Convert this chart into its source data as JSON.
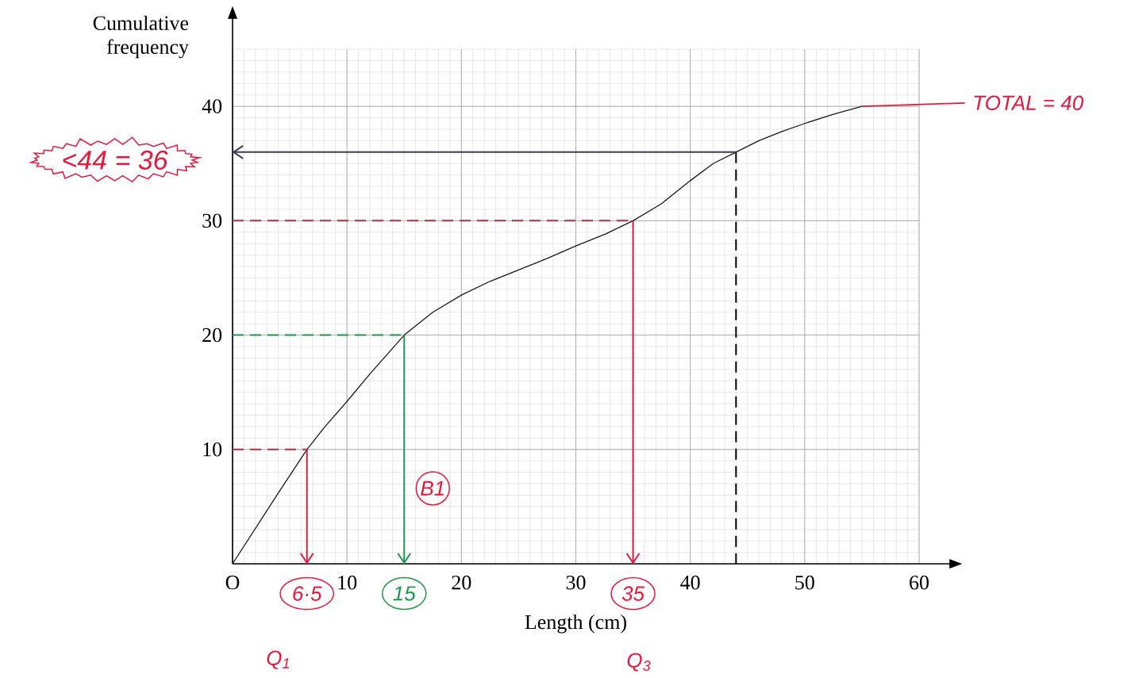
{
  "chart_data": {
    "type": "line",
    "xlabel": "Length (cm)",
    "ylabel": "Cumulative frequency",
    "x": [
      0,
      2,
      4,
      6.5,
      8,
      10,
      12,
      15,
      17.5,
      20,
      22.5,
      25,
      27.5,
      30,
      32.5,
      35,
      37.5,
      40,
      42,
      44,
      46,
      48,
      50,
      52.5,
      55
    ],
    "series": [
      {
        "color": "#1a1a1a",
        "values": [
          0,
          3.1,
          6.2,
          10,
          11.9,
          14.2,
          16.6,
          20,
          22,
          23.5,
          24.7,
          25.7,
          26.7,
          27.8,
          28.8,
          30,
          31.5,
          33.5,
          35,
          36,
          37,
          37.8,
          38.5,
          39.3,
          40
        ]
      },
      {
        "color": "#b03040",
        "line_style": "dashed",
        "x": [
          0,
          6.5
        ],
        "values": [
          10,
          10
        ]
      },
      {
        "color": "#e8173c",
        "x": [
          6.5,
          6.5
        ],
        "values": [
          10,
          0
        ]
      },
      {
        "color": "#1a9a4a",
        "line_style": "dashed",
        "x": [
          0,
          15
        ],
        "values": [
          20,
          20
        ]
      },
      {
        "color": "#1a9a4a",
        "x": [
          15,
          15
        ],
        "values": [
          20,
          0
        ]
      },
      {
        "color": "#b03040",
        "line_style": "dashed",
        "x": [
          0,
          35
        ],
        "values": [
          30,
          30
        ]
      },
      {
        "color": "#e8173c",
        "x": [
          35,
          35
        ],
        "values": [
          30,
          0
        ]
      },
      {
        "color": "#000000",
        "line_style": "dashed",
        "x": [
          44,
          44
        ],
        "values": [
          36,
          0
        ]
      },
      {
        "color": "#3c3c5a",
        "x": [
          44,
          0
        ],
        "values": [
          36,
          36
        ]
      }
    ],
    "xlim": [
      0,
      60
    ],
    "ylim": [
      0,
      45
    ],
    "xticks": [
      {
        "value": 0,
        "label": "O"
      },
      10,
      20,
      30,
      40,
      50,
      60
    ],
    "yticks": [
      10,
      20,
      30,
      40
    ],
    "grid": true,
    "annotations": [
      "6·5",
      "15",
      "35",
      "<44 = 36",
      "TOTAL = 40",
      "B1",
      "Q$_{1}$",
      "Q$_{3}$"
    ]
  }
}
